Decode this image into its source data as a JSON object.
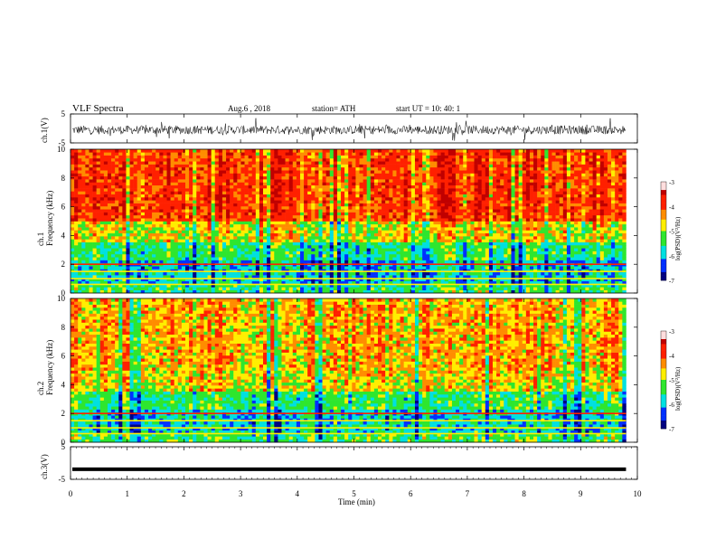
{
  "header": {
    "title": "VLF  Spectra",
    "date": "Aug.6  , 2018",
    "station": "station= ATH",
    "start_ut": "start  UT  =    10: 40: 1"
  },
  "axes": {
    "ch1_wave_label": "ch.1(V)",
    "ch3_wave_label": "ch.3(V)",
    "ch1_spec_label_a": "ch.1",
    "ch1_spec_label_b": "Frequency  (kHz)",
    "ch2_spec_label_a": "ch.2",
    "ch2_spec_label_b": "Frequency  (kHz)",
    "time_label": "Time  (min)",
    "colorbar_label": "log(PSD)(V²/Hz)"
  },
  "colors": {
    "darkred": "#c00000",
    "red": "#ff2000",
    "orange": "#ff8c00",
    "yellow": "#ffee00",
    "green": "#2ee62e",
    "cyan": "#00e0e0",
    "blue": "#0030ff",
    "navy": "#000080",
    "black": "#000000"
  },
  "chart_data": [
    {
      "type": "line",
      "panel": "ch.1 waveform",
      "ylabel": "ch.1(V)",
      "ylim": [
        -5,
        5
      ],
      "yticks": [
        5,
        -5
      ],
      "xlim": [
        0,
        10
      ],
      "description_values": {
        "mean_v": -0.5,
        "amplitude_v": 1.5,
        "duration_min": 9.8
      }
    },
    {
      "type": "heatmap",
      "panel": "ch.1 spectrogram",
      "ylabel": "Frequency  (kHz)",
      "ylim": [
        0,
        10
      ],
      "yticks": [
        0,
        2,
        4,
        6,
        8,
        10
      ],
      "xlim": [
        0,
        10
      ],
      "colorbar": {
        "label": "log(PSD)(V²/Hz)",
        "range": [
          -7,
          -3
        ],
        "ticks": [
          -3,
          -4,
          -5,
          -6,
          -7
        ]
      }
    },
    {
      "type": "heatmap",
      "panel": "ch.2 spectrogram",
      "ylabel": "Frequency  (kHz)",
      "ylim": [
        0,
        10
      ],
      "yticks": [
        0,
        2,
        4,
        6,
        8,
        10
      ],
      "xlim": [
        0,
        10
      ],
      "colorbar": {
        "label": "log(PSD)(V²/Hz)",
        "range": [
          -7,
          -3
        ],
        "ticks": [
          -3,
          -4,
          -5,
          -6,
          -7
        ]
      }
    },
    {
      "type": "line",
      "panel": "ch.3 waveform",
      "ylabel": "ch.3(V)",
      "ylim": [
        -5,
        5
      ],
      "yticks": [
        5,
        -5
      ],
      "xlim": [
        0,
        10
      ],
      "description_values": {
        "mean_v": -1.5,
        "amplitude_v": 0.2,
        "duration_min": 9.8
      }
    },
    {
      "type": "line",
      "panel": "time axis",
      "xlabel": "Time  (min)",
      "xlim": [
        0,
        10
      ],
      "xticks": [
        0,
        1,
        2,
        3,
        4,
        5,
        6,
        7,
        8,
        9,
        10
      ]
    }
  ]
}
